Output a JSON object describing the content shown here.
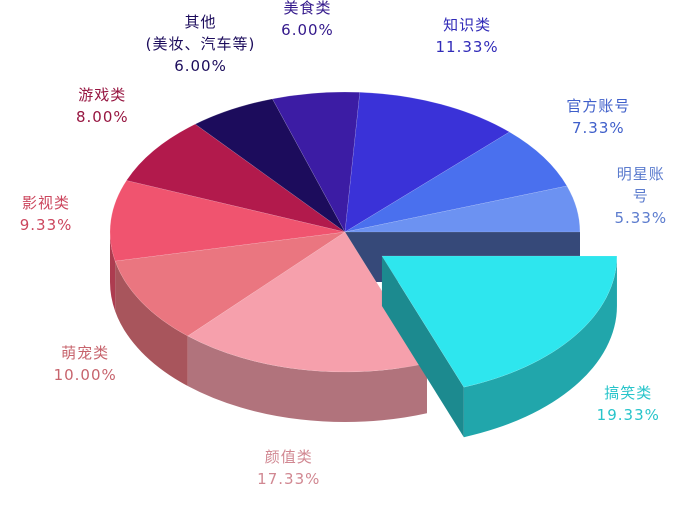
{
  "chart_data": {
    "type": "pie",
    "categories": [
      "搞笑类",
      "颜值类",
      "萌宠类",
      "影视类",
      "游戏类",
      "其他\n(美妆、汽车等)",
      "美食类",
      "知识类",
      "官方账号",
      "明星账号"
    ],
    "values": [
      19.33,
      17.33,
      10.0,
      9.33,
      8.0,
      6.0,
      6.0,
      11.33,
      7.33,
      5.33
    ],
    "value_labels": [
      "19.33%",
      "17.33%",
      "10.00%",
      "9.33%",
      "8.00%",
      "6.00%",
      "6.00%",
      "11.33%",
      "7.33%",
      "5.33%"
    ],
    "colors": [
      "#2ee6ee",
      "#f6a0ac",
      "#ea7680",
      "#f0546f",
      "#b21a4c",
      "#1c0c5c",
      "#3c1ca4",
      "#3a32d8",
      "#4a70ee",
      "#6c92f2"
    ],
    "explode": [
      true,
      false,
      false,
      false,
      false,
      false,
      false,
      false,
      false,
      false
    ]
  }
}
